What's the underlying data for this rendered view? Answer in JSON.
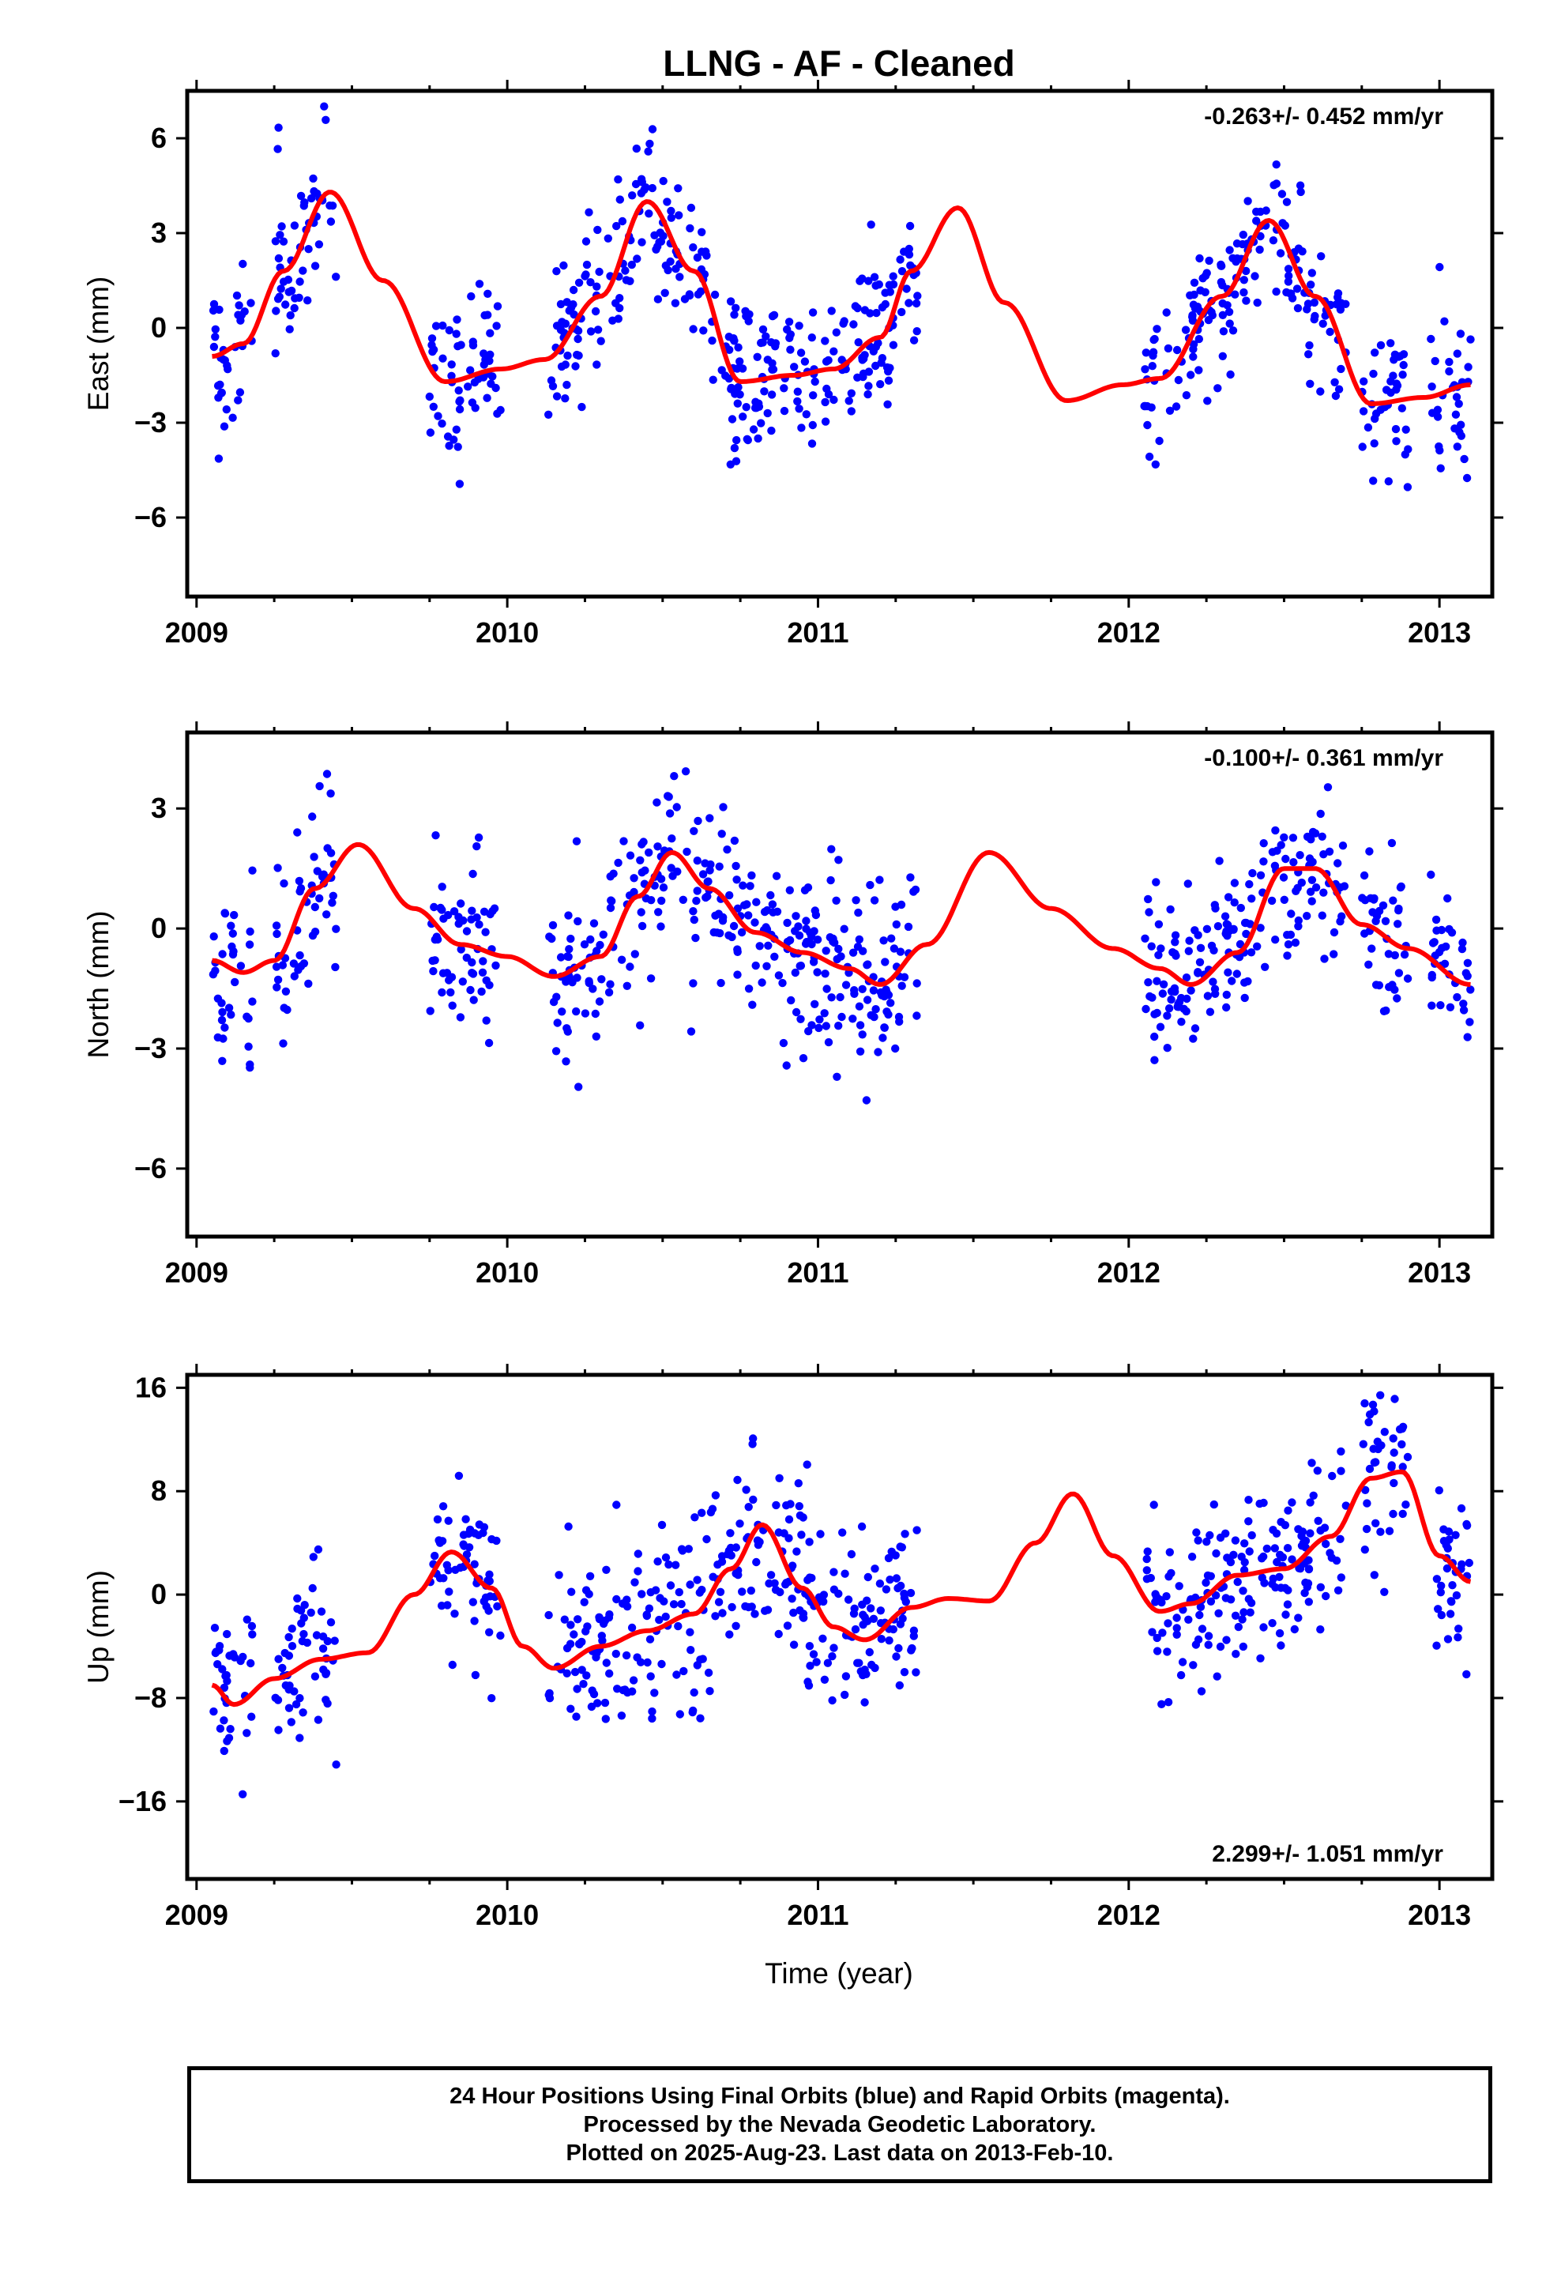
{
  "title": "LLNG  - AF - Cleaned",
  "xlabel": "Time (year)",
  "footer": {
    "line1": "24 Hour Positions Using Final Orbits (blue) and Rapid Orbits (magenta).",
    "line2": "Processed by the Nevada Geodetic Laboratory.",
    "line3": "Plotted on 2025-Aug-23. Last data on 2013-Feb-10."
  },
  "colors": {
    "points": "#0000ff",
    "fit": "#ff0000",
    "frame": "#000000"
  },
  "chart_data": [
    {
      "type": "scatter",
      "ylabel": "East (mm)",
      "rate": "-0.263+/- 0.452 mm/yr",
      "xlim": [
        2008.97,
        2013.17
      ],
      "ylim": [
        -8.5,
        7.5
      ],
      "xticks": [
        2009,
        2010,
        2011,
        2012,
        2013
      ],
      "yticks": [
        6,
        3,
        0,
        -3,
        -6
      ],
      "ytick_labels": [
        "6",
        "3",
        "0",
        "-3",
        "-6"
      ],
      "fit": {
        "x": [
          2009.05,
          2009.15,
          2009.28,
          2009.43,
          2009.6,
          2009.8,
          2009.98,
          2010.12,
          2010.3,
          2010.45,
          2010.6,
          2010.75,
          2010.92,
          2011.05,
          2011.2,
          2011.3,
          2011.45,
          2011.6,
          2011.8,
          2011.98,
          2012.1,
          2012.3,
          2012.45,
          2012.6,
          2012.78,
          2012.95,
          2013.1
        ],
        "y": [
          -0.9,
          -0.5,
          1.8,
          4.3,
          1.5,
          -1.7,
          -1.3,
          -1.0,
          1.0,
          4.0,
          1.8,
          -1.7,
          -1.5,
          -1.3,
          -0.3,
          1.8,
          3.8,
          0.8,
          -2.3,
          -1.8,
          -1.6,
          1.0,
          3.4,
          1.0,
          -2.4,
          -2.2,
          -1.8
        ]
      },
      "scatter": {
        "segments": [
          [
            2009.05,
            2009.18
          ],
          [
            2009.25,
            2009.45
          ],
          [
            2009.75,
            2009.98
          ],
          [
            2010.13,
            2011.32
          ],
          [
            2012.05,
            2012.7
          ],
          [
            2012.75,
            2012.9
          ],
          [
            2012.97,
            2013.1
          ]
        ],
        "spread": 1.3,
        "n": 700,
        "seed": 11
      }
    },
    {
      "type": "scatter",
      "ylabel": "North (mm)",
      "rate": "-0.100+/- 0.361 mm/yr",
      "xlim": [
        2008.97,
        2013.17
      ],
      "ylim": [
        -7.7,
        4.9
      ],
      "xticks": [
        2009,
        2010,
        2011,
        2012,
        2013
      ],
      "yticks": [
        3,
        0,
        -3,
        -6
      ],
      "ytick_labels": [
        "3",
        "0",
        "-3",
        "-6"
      ],
      "fit": {
        "x": [
          2009.05,
          2009.15,
          2009.25,
          2009.38,
          2009.52,
          2009.7,
          2009.85,
          2010.0,
          2010.15,
          2010.3,
          2010.42,
          2010.53,
          2010.65,
          2010.8,
          2010.95,
          2011.1,
          2011.2,
          2011.35,
          2011.55,
          2011.75,
          2011.95,
          2012.1,
          2012.2,
          2012.35,
          2012.5,
          2012.6,
          2012.75,
          2012.9,
          2013.1
        ],
        "y": [
          -0.8,
          -1.1,
          -0.8,
          1.0,
          2.1,
          0.5,
          -0.4,
          -0.7,
          -1.2,
          -0.7,
          0.8,
          1.9,
          1.0,
          -0.1,
          -0.6,
          -1.0,
          -1.4,
          -0.4,
          1.9,
          0.5,
          -0.5,
          -1.0,
          -1.4,
          -0.6,
          1.5,
          1.5,
          0.1,
          -0.5,
          -1.4
        ]
      },
      "scatter": {
        "segments": [
          [
            2009.05,
            2009.18
          ],
          [
            2009.25,
            2009.45
          ],
          [
            2009.75,
            2009.98
          ],
          [
            2010.13,
            2011.32
          ],
          [
            2012.05,
            2012.7
          ],
          [
            2012.75,
            2012.9
          ],
          [
            2012.97,
            2013.1
          ]
        ],
        "spread": 1.1,
        "n": 700,
        "seed": 23
      }
    },
    {
      "type": "scatter",
      "ylabel": "Up (mm)",
      "rate": "2.299+/- 1.051 mm/yr",
      "xlim": [
        2008.97,
        2013.17
      ],
      "ylim": [
        -22,
        17
      ],
      "xticks": [
        2009,
        2010,
        2011,
        2012,
        2013
      ],
      "yticks": [
        16,
        8,
        0,
        -8,
        -16
      ],
      "ytick_labels": [
        "16",
        "8",
        "0",
        "−16"
      ],
      "ytick_label_values": [
        16,
        8,
        0,
        -16
      ],
      "yticks_extra_label": {
        "value": -8,
        "text": "-8"
      },
      "fit": {
        "x": [
          2009.05,
          2009.12,
          2009.25,
          2009.4,
          2009.55,
          2009.7,
          2009.82,
          2009.95,
          2010.05,
          2010.15,
          2010.3,
          2010.45,
          2010.6,
          2010.72,
          2010.82,
          2010.95,
          2011.05,
          2011.15,
          2011.3,
          2011.42,
          2011.55,
          2011.7,
          2011.82,
          2011.95,
          2012.1,
          2012.2,
          2012.35,
          2012.5,
          2012.65,
          2012.78,
          2012.88,
          2013.0,
          2013.1
        ],
        "y": [
          -7,
          -8.5,
          -6.5,
          -5,
          -4.5,
          0,
          3.3,
          0.5,
          -4,
          -5.7,
          -4,
          -2.8,
          -1.5,
          2,
          5.4,
          0.5,
          -2.5,
          -3.5,
          -1,
          -0.3,
          -0.5,
          4,
          7.8,
          3,
          -1.3,
          -0.7,
          1.5,
          2,
          4.5,
          9,
          9.5,
          3,
          1
        ]
      },
      "scatter": {
        "segments": [
          [
            2009.05,
            2009.18
          ],
          [
            2009.25,
            2009.45
          ],
          [
            2009.75,
            2009.98
          ],
          [
            2010.13,
            2011.32
          ],
          [
            2012.05,
            2012.7
          ],
          [
            2012.75,
            2012.9
          ],
          [
            2012.97,
            2013.1
          ]
        ],
        "spread": 3.5,
        "n": 700,
        "seed": 37
      }
    }
  ]
}
